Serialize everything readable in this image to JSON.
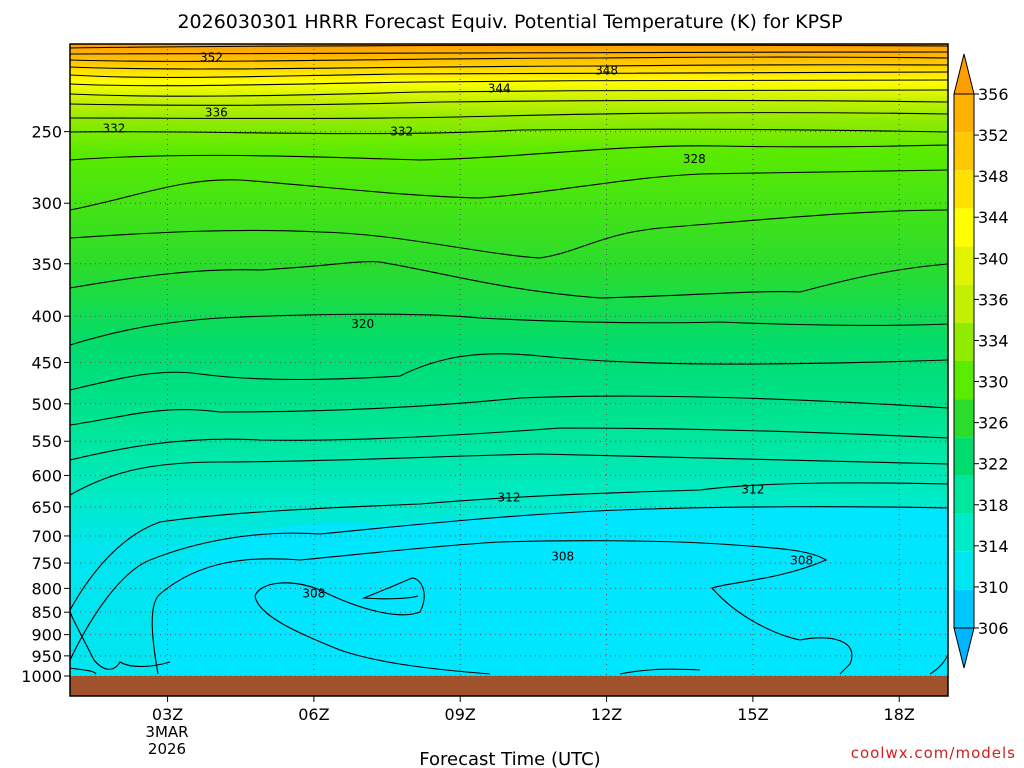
{
  "chart_data": {
    "type": "heatmap",
    "title": "2026030301 HRRR Forecast Equiv. Potential Temperature (K) for KPSP",
    "xlabel": "Forecast Time (UTC)",
    "ylabel": "",
    "credit": "coolwx.com/models",
    "x_ticks": [
      {
        "label": "03Z",
        "hour": 3
      },
      {
        "label": "06Z",
        "hour": 6
      },
      {
        "label": "09Z",
        "hour": 9
      },
      {
        "label": "12Z",
        "hour": 12
      },
      {
        "label": "15Z",
        "hour": 15
      },
      {
        "label": "18Z",
        "hour": 18
      }
    ],
    "date_label": [
      "3MAR",
      "2026"
    ],
    "xlim": [
      1,
      19
    ],
    "y_ticks": [
      250,
      300,
      350,
      400,
      450,
      500,
      550,
      600,
      650,
      700,
      750,
      800,
      850,
      900,
      950,
      1000
    ],
    "ylim": [
      1000,
      200
    ],
    "y_scale": "log",
    "colorbar": {
      "labels": [
        356,
        352,
        348,
        344,
        340,
        336,
        334,
        330,
        326,
        322,
        318,
        314,
        310,
        306
      ],
      "colors": [
        "#ff9d00",
        "#ffb100",
        "#ffc800",
        "#ffe100",
        "#ffff00",
        "#e1f500",
        "#c3f000",
        "#91eb00",
        "#5aeb00",
        "#2cdc2c",
        "#00dc6e",
        "#00e69b",
        "#00ebc8",
        "#00e6f0",
        "#00c8ff",
        "#00b4ff"
      ],
      "extend": "both"
    },
    "ground": {
      "color": "#a0522d"
    },
    "levels": [
      1000,
      950,
      900,
      850,
      800,
      750,
      700,
      650,
      600,
      550,
      500,
      450,
      400,
      350,
      300,
      250,
      200
    ],
    "theta_e_by_level": [
      308,
      307,
      307,
      307,
      308,
      309,
      311,
      313,
      316,
      318,
      320,
      321,
      322,
      324,
      326,
      331,
      350
    ],
    "contour_labels": [
      {
        "value": "352",
        "hour": 3.9,
        "pressure": 207
      },
      {
        "value": "348",
        "hour": 12,
        "pressure": 214
      },
      {
        "value": "344",
        "hour": 9.8,
        "pressure": 224
      },
      {
        "value": "336",
        "hour": 4.0,
        "pressure": 238
      },
      {
        "value": "332",
        "hour": 1.9,
        "pressure": 248
      },
      {
        "value": "332",
        "hour": 7.8,
        "pressure": 250
      },
      {
        "value": "328",
        "hour": 13.8,
        "pressure": 268
      },
      {
        "value": "320",
        "hour": 7,
        "pressure": 408
      },
      {
        "value": "312",
        "hour": 10,
        "pressure": 635
      },
      {
        "value": "312",
        "hour": 15,
        "pressure": 622
      },
      {
        "value": "308",
        "hour": 11.1,
        "pressure": 738
      },
      {
        "value": "308",
        "hour": 16,
        "pressure": 745
      },
      {
        "value": "308",
        "hour": 6,
        "pressure": 810
      }
    ]
  },
  "colors": {
    "contour": "#000000",
    "grid": "#555555",
    "credit": "#d21f1f"
  }
}
